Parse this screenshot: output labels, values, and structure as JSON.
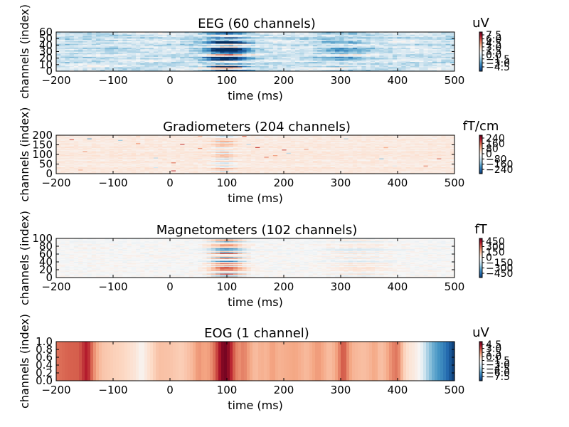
{
  "chart_data": [
    {
      "type": "heatmap",
      "title": "EEG (60 channels)",
      "xlabel": "time (ms)",
      "ylabel": "channels (index)",
      "unit": "uV",
      "xlim": [
        -200,
        500
      ],
      "ylim": [
        0,
        60
      ],
      "xticks": [
        "−200",
        "−100",
        "0",
        "100",
        "200",
        "300",
        "400",
        "500"
      ],
      "yticks": [
        "0",
        "10",
        "20",
        "30",
        "40",
        "50",
        "60"
      ],
      "colorbar_ticks": [
        "−4.5",
        "−3.0",
        "−1.5",
        "0.0",
        "1.5",
        "3.0",
        "4.5",
        "6.0",
        "7.5"
      ],
      "colorbar_range": [
        -5.2,
        8.0
      ],
      "colormap": "RdBu_r"
    },
    {
      "type": "heatmap",
      "title": "Gradiometers (204 channels)",
      "xlabel": "time (ms)",
      "ylabel": "channels (index)",
      "unit": "fT/cm",
      "xlim": [
        -200,
        500
      ],
      "ylim": [
        0,
        200
      ],
      "xticks": [
        "−200",
        "−100",
        "0",
        "100",
        "200",
        "300",
        "400",
        "500"
      ],
      "yticks": [
        "0",
        "50",
        "100",
        "150",
        "200"
      ],
      "colorbar_ticks": [
        "−240",
        "−160",
        "−80",
        "0",
        "80",
        "160",
        "240"
      ],
      "colorbar_range": [
        -260,
        260
      ],
      "colormap": "RdBu_r"
    },
    {
      "type": "heatmap",
      "title": "Magnetometers (102 channels)",
      "xlabel": "time (ms)",
      "ylabel": "channels (index)",
      "unit": "fT",
      "xlim": [
        -200,
        500
      ],
      "ylim": [
        0,
        100
      ],
      "xticks": [
        "−200",
        "−100",
        "0",
        "100",
        "200",
        "300",
        "400",
        "500"
      ],
      "yticks": [
        "0",
        "20",
        "40",
        "60",
        "80",
        "100"
      ],
      "colorbar_ticks": [
        "−450",
        "−300",
        "−150",
        "0",
        "150",
        "300",
        "450"
      ],
      "colorbar_range": [
        -480,
        480
      ],
      "colormap": "RdBu_r"
    },
    {
      "type": "heatmap",
      "title": "EOG (1 channel)",
      "xlabel": "time (ms)",
      "ylabel": "channels (index)",
      "unit": "uV",
      "xlim": [
        -200,
        500
      ],
      "ylim": [
        0.0,
        1.0
      ],
      "xticks": [
        "−200",
        "−100",
        "0",
        "100",
        "200",
        "300",
        "400",
        "500"
      ],
      "yticks": [
        "0.0",
        "0.2",
        "0.4",
        "0.6",
        "0.8",
        "1.0"
      ],
      "colorbar_ticks": [
        "−7.5",
        "−6.0",
        "−4.5",
        "−3.0",
        "−1.5",
        "0.0",
        "1.5",
        "3.0",
        "4.5"
      ],
      "colorbar_range": [
        -8.0,
        5.2
      ],
      "colormap": "RdBu_r",
      "series": [
        {
          "x": [
            -200,
            -180,
            -160,
            -150,
            -145,
            -140,
            -130,
            -120,
            -100,
            -80,
            -60,
            -50,
            -40,
            -20,
            0,
            20,
            40,
            50,
            60,
            70,
            80,
            85,
            90,
            95,
            100,
            105,
            110,
            115,
            120,
            130,
            140,
            150,
            160,
            170,
            180,
            190,
            200,
            220,
            240,
            260,
            280,
            290,
            300,
            305,
            310,
            320,
            340,
            350,
            360,
            370,
            380,
            390,
            400,
            410,
            420,
            430,
            440,
            450,
            460,
            470,
            480,
            490,
            500
          ],
          "values": [
            2.2,
            2.5,
            2.6,
            3.6,
            4.0,
            2.8,
            1.2,
            0.5,
            0.2,
            0.0,
            -0.6,
            -1.3,
            -0.5,
            0.6,
            0.5,
            0.2,
            0.8,
            1.6,
            1.2,
            1.4,
            2.5,
            3.6,
            4.5,
            5.0,
            4.8,
            4.2,
            3.0,
            2.2,
            1.6,
            2.0,
            1.2,
            0.6,
            1.0,
            0.8,
            1.4,
            0.9,
            1.0,
            1.2,
            0.7,
            1.5,
            0.6,
            1.0,
            2.2,
            3.0,
            2.0,
            0.9,
            0.6,
            0.8,
            1.2,
            0.5,
            0.9,
            1.8,
            2.2,
            0.3,
            -0.5,
            -0.8,
            -1.5,
            -3.2,
            -4.5,
            -5.2,
            -5.8,
            -6.8,
            -7.8
          ]
        }
      ]
    }
  ]
}
